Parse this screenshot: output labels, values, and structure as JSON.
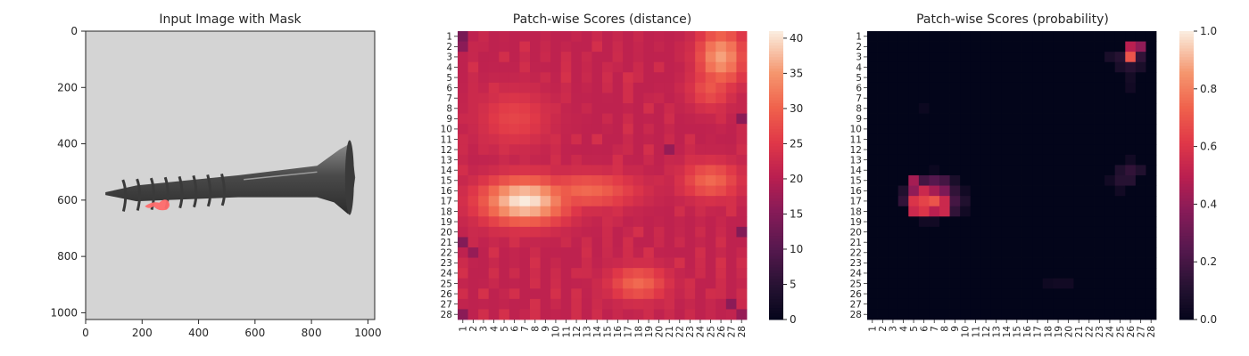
{
  "chart_data": [
    {
      "type": "image",
      "title": "Input Image with Mask",
      "xlim": [
        0,
        1024
      ],
      "ylim": [
        1024,
        0
      ],
      "x_ticks": [
        0,
        200,
        400,
        600,
        800,
        1000
      ],
      "y_ticks": [
        0,
        200,
        400,
        600,
        800,
        1000
      ],
      "background_color": "#d4d4d4",
      "object": "screw",
      "object_color": "#4a4a4a",
      "mask_color": "#ff6b6b",
      "mask_center": [
        260,
        612
      ]
    },
    {
      "type": "heatmap",
      "title": "Patch-wise Scores (distance)",
      "rows": 28,
      "cols": 28,
      "row_labels": [
        "1",
        "2",
        "3",
        "4",
        "5",
        "6",
        "7",
        "8",
        "9",
        "10",
        "11",
        "12",
        "13",
        "14",
        "15",
        "16",
        "17",
        "18",
        "19",
        "20",
        "21",
        "22",
        "23",
        "24",
        "25",
        "26",
        "27",
        "28"
      ],
      "col_labels": [
        "1",
        "2",
        "3",
        "4",
        "5",
        "6",
        "7",
        "8",
        "9",
        "10",
        "11",
        "12",
        "13",
        "14",
        "15",
        "16",
        "17",
        "18",
        "19",
        "20",
        "21",
        "22",
        "23",
        "24",
        "25",
        "26",
        "27",
        "28"
      ],
      "colormap": "rocket",
      "vmin": 0,
      "vmax": 41,
      "colorbar_ticks": [
        0,
        5,
        10,
        15,
        20,
        25,
        30,
        35,
        40
      ],
      "base_value": 21,
      "hotspots": [
        {
          "row": 17,
          "col": 7,
          "peak": 41,
          "spread_rows": 1.6,
          "spread_cols": 3.0
        },
        {
          "row": 16,
          "col": 13,
          "peak": 31,
          "spread_rows": 1.2,
          "spread_cols": 3.5
        },
        {
          "row": 3,
          "col": 26,
          "peak": 36,
          "spread_rows": 2.0,
          "spread_cols": 1.6
        },
        {
          "row": 15,
          "col": 25,
          "peak": 31,
          "spread_rows": 1.3,
          "spread_cols": 2.0
        },
        {
          "row": 25,
          "col": 18,
          "peak": 31,
          "spread_rows": 1.2,
          "spread_cols": 2.0
        },
        {
          "row": 6,
          "col": 25,
          "peak": 29,
          "spread_rows": 1.5,
          "spread_cols": 1.5
        },
        {
          "row": 9,
          "col": 6,
          "peak": 27,
          "spread_rows": 2.0,
          "spread_cols": 2.5
        }
      ],
      "lows": [
        {
          "row": 1,
          "col": 1,
          "value": 14
        },
        {
          "row": 2,
          "col": 1,
          "value": 16
        },
        {
          "row": 21,
          "col": 1,
          "value": 15
        },
        {
          "row": 22,
          "col": 2,
          "value": 17
        },
        {
          "row": 28,
          "col": 1,
          "value": 16
        },
        {
          "row": 28,
          "col": 28,
          "value": 17
        },
        {
          "row": 9,
          "col": 28,
          "value": 16
        },
        {
          "row": 20,
          "col": 28,
          "value": 15
        },
        {
          "row": 12,
          "col": 21,
          "value": 17
        },
        {
          "row": 27,
          "col": 27,
          "value": 16
        }
      ]
    },
    {
      "type": "heatmap",
      "title": "Patch-wise Scores (probability)",
      "rows": 28,
      "cols": 28,
      "row_labels": [
        "1",
        "2",
        "3",
        "4",
        "5",
        "6",
        "7",
        "8",
        "9",
        "10",
        "11",
        "12",
        "13",
        "14",
        "15",
        "16",
        "17",
        "18",
        "19",
        "20",
        "21",
        "22",
        "23",
        "24",
        "25",
        "26",
        "27",
        "28"
      ],
      "col_labels": [
        "1",
        "2",
        "3",
        "4",
        "5",
        "6",
        "7",
        "8",
        "9",
        "10",
        "11",
        "12",
        "13",
        "14",
        "15",
        "16",
        "17",
        "18",
        "19",
        "20",
        "21",
        "22",
        "23",
        "24",
        "25",
        "26",
        "27",
        "28"
      ],
      "colormap": "rocket",
      "vmin": 0.0,
      "vmax": 1.0,
      "colorbar_ticks": [
        "0.0",
        "0.2",
        "0.4",
        "0.6",
        "0.8",
        "1.0"
      ],
      "base_value": 0.0,
      "cells": [
        {
          "row": 2,
          "col": 26,
          "value": 0.5
        },
        {
          "row": 2,
          "col": 27,
          "value": 0.4
        },
        {
          "row": 3,
          "col": 26,
          "value": 0.7
        },
        {
          "row": 3,
          "col": 27,
          "value": 0.15
        },
        {
          "row": 3,
          "col": 25,
          "value": 0.12
        },
        {
          "row": 3,
          "col": 24,
          "value": 0.08
        },
        {
          "row": 4,
          "col": 25,
          "value": 0.08
        },
        {
          "row": 4,
          "col": 26,
          "value": 0.12
        },
        {
          "row": 4,
          "col": 27,
          "value": 0.08
        },
        {
          "row": 5,
          "col": 26,
          "value": 0.06
        },
        {
          "row": 6,
          "col": 26,
          "value": 0.05
        },
        {
          "row": 14,
          "col": 25,
          "value": 0.1
        },
        {
          "row": 14,
          "col": 26,
          "value": 0.15
        },
        {
          "row": 14,
          "col": 27,
          "value": 0.1
        },
        {
          "row": 15,
          "col": 25,
          "value": 0.12
        },
        {
          "row": 15,
          "col": 26,
          "value": 0.12
        },
        {
          "row": 15,
          "col": 24,
          "value": 0.05
        },
        {
          "row": 16,
          "col": 25,
          "value": 0.05
        },
        {
          "row": 13,
          "col": 26,
          "value": 0.05
        },
        {
          "row": 15,
          "col": 5,
          "value": 0.45
        },
        {
          "row": 15,
          "col": 6,
          "value": 0.2
        },
        {
          "row": 15,
          "col": 7,
          "value": 0.25
        },
        {
          "row": 15,
          "col": 8,
          "value": 0.2
        },
        {
          "row": 15,
          "col": 9,
          "value": 0.08
        },
        {
          "row": 16,
          "col": 4,
          "value": 0.1
        },
        {
          "row": 16,
          "col": 5,
          "value": 0.4
        },
        {
          "row": 16,
          "col": 6,
          "value": 0.55
        },
        {
          "row": 16,
          "col": 7,
          "value": 0.45
        },
        {
          "row": 16,
          "col": 8,
          "value": 0.35
        },
        {
          "row": 16,
          "col": 9,
          "value": 0.15
        },
        {
          "row": 16,
          "col": 10,
          "value": 0.05
        },
        {
          "row": 17,
          "col": 4,
          "value": 0.15
        },
        {
          "row": 17,
          "col": 5,
          "value": 0.6
        },
        {
          "row": 17,
          "col": 6,
          "value": 0.65
        },
        {
          "row": 17,
          "col": 7,
          "value": 0.7
        },
        {
          "row": 17,
          "col": 8,
          "value": 0.55
        },
        {
          "row": 17,
          "col": 9,
          "value": 0.2
        },
        {
          "row": 17,
          "col": 10,
          "value": 0.1
        },
        {
          "row": 18,
          "col": 5,
          "value": 0.55
        },
        {
          "row": 18,
          "col": 6,
          "value": 0.6
        },
        {
          "row": 18,
          "col": 7,
          "value": 0.5
        },
        {
          "row": 18,
          "col": 8,
          "value": 0.55
        },
        {
          "row": 18,
          "col": 9,
          "value": 0.15
        },
        {
          "row": 18,
          "col": 10,
          "value": 0.05
        },
        {
          "row": 19,
          "col": 6,
          "value": 0.05
        },
        {
          "row": 19,
          "col": 7,
          "value": 0.05
        },
        {
          "row": 14,
          "col": 7,
          "value": 0.03
        },
        {
          "row": 25,
          "col": 18,
          "value": 0.04
        },
        {
          "row": 25,
          "col": 19,
          "value": 0.05
        },
        {
          "row": 25,
          "col": 20,
          "value": 0.05
        },
        {
          "row": 8,
          "col": 6,
          "value": 0.03
        }
      ]
    }
  ]
}
